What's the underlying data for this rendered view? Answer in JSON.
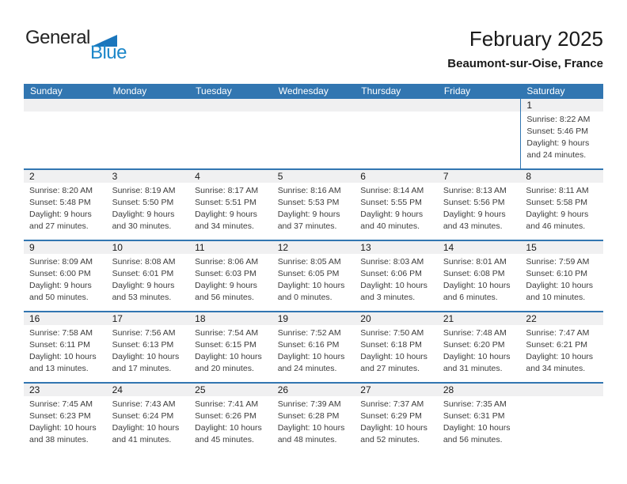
{
  "logo": {
    "line1": "General",
    "line2": "Blue"
  },
  "header": {
    "title": "February 2025",
    "subtitle": "Beaumont-sur-Oise, France"
  },
  "colors": {
    "header_blue": "#3276B1",
    "row_border_blue": "#3276B1",
    "band_gray": "#F0F0F1",
    "logo_triangle_blue": "#1B76BC",
    "logo_text_blue": "#1C87C9",
    "title_text": "#1A1A1A",
    "detail_text": "#3C3C3C"
  },
  "calendar": {
    "weekdays": [
      "Sunday",
      "Monday",
      "Tuesday",
      "Wednesday",
      "Thursday",
      "Friday",
      "Saturday"
    ],
    "labels": {
      "sunrise": "Sunrise:",
      "sunset": "Sunset:",
      "daylight": "Daylight:",
      "hours_suffix": "hours",
      "and": "and",
      "minutes_suffix": "minutes."
    },
    "weeks": [
      [
        null,
        null,
        null,
        null,
        null,
        null,
        1
      ],
      [
        2,
        3,
        4,
        5,
        6,
        7,
        8
      ],
      [
        9,
        10,
        11,
        12,
        13,
        14,
        15
      ],
      [
        16,
        17,
        18,
        19,
        20,
        21,
        22
      ],
      [
        23,
        24,
        25,
        26,
        27,
        28,
        null
      ]
    ],
    "days": [
      {
        "day": 1,
        "sunrise": "8:22 AM",
        "sunset": "5:46 PM",
        "daylight_hours": 9,
        "daylight_minutes": 24
      },
      {
        "day": 2,
        "sunrise": "8:20 AM",
        "sunset": "5:48 PM",
        "daylight_hours": 9,
        "daylight_minutes": 27
      },
      {
        "day": 3,
        "sunrise": "8:19 AM",
        "sunset": "5:50 PM",
        "daylight_hours": 9,
        "daylight_minutes": 30
      },
      {
        "day": 4,
        "sunrise": "8:17 AM",
        "sunset": "5:51 PM",
        "daylight_hours": 9,
        "daylight_minutes": 34
      },
      {
        "day": 5,
        "sunrise": "8:16 AM",
        "sunset": "5:53 PM",
        "daylight_hours": 9,
        "daylight_minutes": 37
      },
      {
        "day": 6,
        "sunrise": "8:14 AM",
        "sunset": "5:55 PM",
        "daylight_hours": 9,
        "daylight_minutes": 40
      },
      {
        "day": 7,
        "sunrise": "8:13 AM",
        "sunset": "5:56 PM",
        "daylight_hours": 9,
        "daylight_minutes": 43
      },
      {
        "day": 8,
        "sunrise": "8:11 AM",
        "sunset": "5:58 PM",
        "daylight_hours": 9,
        "daylight_minutes": 46
      },
      {
        "day": 9,
        "sunrise": "8:09 AM",
        "sunset": "6:00 PM",
        "daylight_hours": 9,
        "daylight_minutes": 50
      },
      {
        "day": 10,
        "sunrise": "8:08 AM",
        "sunset": "6:01 PM",
        "daylight_hours": 9,
        "daylight_minutes": 53
      },
      {
        "day": 11,
        "sunrise": "8:06 AM",
        "sunset": "6:03 PM",
        "daylight_hours": 9,
        "daylight_minutes": 56
      },
      {
        "day": 12,
        "sunrise": "8:05 AM",
        "sunset": "6:05 PM",
        "daylight_hours": 10,
        "daylight_minutes": 0
      },
      {
        "day": 13,
        "sunrise": "8:03 AM",
        "sunset": "6:06 PM",
        "daylight_hours": 10,
        "daylight_minutes": 3
      },
      {
        "day": 14,
        "sunrise": "8:01 AM",
        "sunset": "6:08 PM",
        "daylight_hours": 10,
        "daylight_minutes": 6
      },
      {
        "day": 15,
        "sunrise": "7:59 AM",
        "sunset": "6:10 PM",
        "daylight_hours": 10,
        "daylight_minutes": 10
      },
      {
        "day": 16,
        "sunrise": "7:58 AM",
        "sunset": "6:11 PM",
        "daylight_hours": 10,
        "daylight_minutes": 13
      },
      {
        "day": 17,
        "sunrise": "7:56 AM",
        "sunset": "6:13 PM",
        "daylight_hours": 10,
        "daylight_minutes": 17
      },
      {
        "day": 18,
        "sunrise": "7:54 AM",
        "sunset": "6:15 PM",
        "daylight_hours": 10,
        "daylight_minutes": 20
      },
      {
        "day": 19,
        "sunrise": "7:52 AM",
        "sunset": "6:16 PM",
        "daylight_hours": 10,
        "daylight_minutes": 24
      },
      {
        "day": 20,
        "sunrise": "7:50 AM",
        "sunset": "6:18 PM",
        "daylight_hours": 10,
        "daylight_minutes": 27
      },
      {
        "day": 21,
        "sunrise": "7:48 AM",
        "sunset": "6:20 PM",
        "daylight_hours": 10,
        "daylight_minutes": 31
      },
      {
        "day": 22,
        "sunrise": "7:47 AM",
        "sunset": "6:21 PM",
        "daylight_hours": 10,
        "daylight_minutes": 34
      },
      {
        "day": 23,
        "sunrise": "7:45 AM",
        "sunset": "6:23 PM",
        "daylight_hours": 10,
        "daylight_minutes": 38
      },
      {
        "day": 24,
        "sunrise": "7:43 AM",
        "sunset": "6:24 PM",
        "daylight_hours": 10,
        "daylight_minutes": 41
      },
      {
        "day": 25,
        "sunrise": "7:41 AM",
        "sunset": "6:26 PM",
        "daylight_hours": 10,
        "daylight_minutes": 45
      },
      {
        "day": 26,
        "sunrise": "7:39 AM",
        "sunset": "6:28 PM",
        "daylight_hours": 10,
        "daylight_minutes": 48
      },
      {
        "day": 27,
        "sunrise": "7:37 AM",
        "sunset": "6:29 PM",
        "daylight_hours": 10,
        "daylight_minutes": 52
      },
      {
        "day": 28,
        "sunrise": "7:35 AM",
        "sunset": "6:31 PM",
        "daylight_hours": 10,
        "daylight_minutes": 56
      }
    ]
  }
}
